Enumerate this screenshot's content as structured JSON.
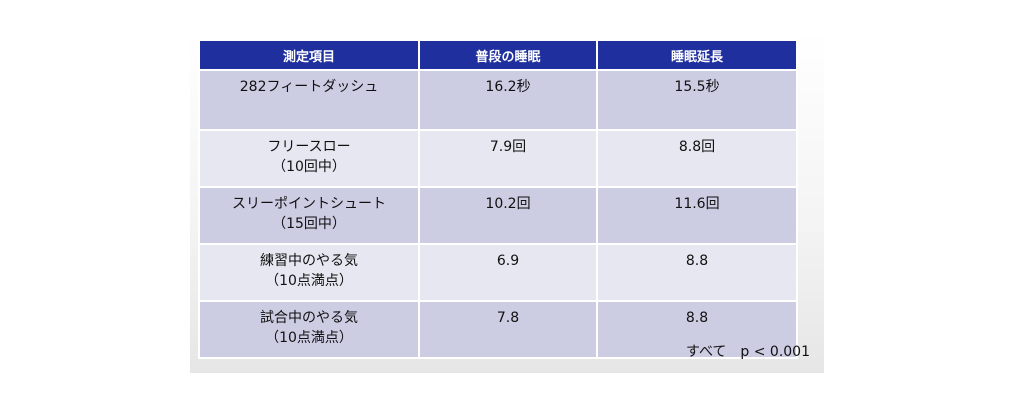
{
  "table": {
    "headers": [
      "測定項目",
      "普段の睡眠",
      "睡眠延長"
    ],
    "rows": [
      {
        "item_line1": "282フィートダッシュ",
        "item_line2": "",
        "normal": "16.2秒",
        "extended": "15.5秒"
      },
      {
        "item_line1": "フリースロー",
        "item_line2": "（10回中）",
        "normal": "7.9回",
        "extended": "8.8回"
      },
      {
        "item_line1": "スリーポイントシュート",
        "item_line2": "（15回中）",
        "normal": "10.2回",
        "extended": "11.6回"
      },
      {
        "item_line1": "練習中のやる気",
        "item_line2": "（10点満点）",
        "normal": "6.9",
        "extended": "8.8"
      },
      {
        "item_line1": "試合中のやる気",
        "item_line2": "（10点満点）",
        "normal": "7.8",
        "extended": "8.8"
      }
    ]
  },
  "note": "すべて　p < 0.001",
  "colors": {
    "header_bg": "#1f2f9e",
    "row_dark": "#cccce3",
    "row_light": "#e7e7f1"
  }
}
